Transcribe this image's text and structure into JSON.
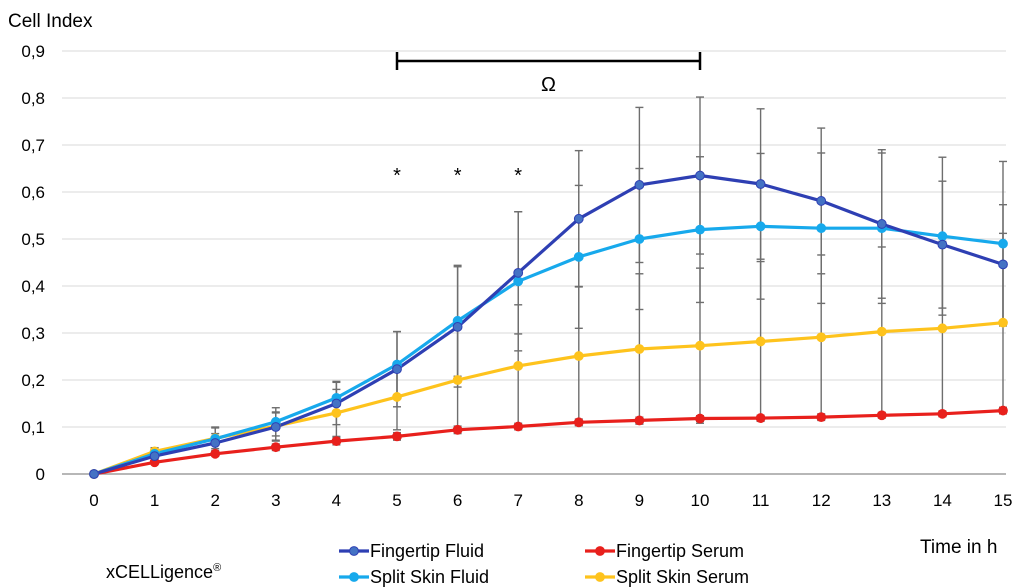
{
  "chart_data": {
    "type": "line",
    "ylabel": "Cell Index",
    "xlabel": "Time in h",
    "ylim": [
      0,
      0.9
    ],
    "yticks": [
      "0",
      "0,1",
      "0,2",
      "0,3",
      "0,4",
      "0,5",
      "0,6",
      "0,7",
      "0,8",
      "0,9"
    ],
    "x": [
      0,
      1,
      2,
      3,
      4,
      5,
      6,
      7,
      8,
      9,
      10,
      11,
      12,
      13,
      14,
      15
    ],
    "xticks": [
      "0",
      "1",
      "2",
      "3",
      "4",
      "5",
      "6",
      "7",
      "8",
      "9",
      "10",
      "11",
      "12",
      "13",
      "14",
      "15"
    ],
    "grid": "horizontal",
    "legend_position": "bottom",
    "series": [
      {
        "name": "Fingertip Fluid",
        "color": "#2e3fb3",
        "marker_color": "#4472c4",
        "values": [
          0,
          0.038,
          0.066,
          0.1,
          0.15,
          0.223,
          0.313,
          0.428,
          0.543,
          0.615,
          0.635,
          0.617,
          0.581,
          0.532,
          0.488,
          0.446
        ],
        "error": [
          0,
          0.012,
          0.02,
          0.03,
          0.045,
          0.08,
          0.128,
          0.13,
          0.145,
          0.165,
          0.167,
          0.16,
          0.155,
          0.158,
          0.135,
          0.127
        ]
      },
      {
        "name": "Fingertip Serum",
        "color": "#e8201c",
        "marker_color": "#e8201c",
        "values": [
          0,
          0.025,
          0.043,
          0.057,
          0.07,
          0.08,
          0.094,
          0.101,
          0.11,
          0.114,
          0.118,
          0.119,
          0.121,
          0.125,
          0.128,
          0.135
        ],
        "error": [
          0,
          0.003,
          0.005,
          0.007,
          0.008,
          0.008,
          0.008,
          0.007,
          0.007,
          0.007,
          0.006,
          0.006,
          0.007,
          0.006,
          0.006,
          0.007
        ]
      },
      {
        "name": "Split Skin Fluid",
        "color": "#17a9ec",
        "marker_color": "#17a9ec",
        "values": [
          0,
          0.043,
          0.075,
          0.111,
          0.162,
          0.233,
          0.326,
          0.41,
          0.462,
          0.5,
          0.52,
          0.527,
          0.523,
          0.523,
          0.506,
          0.49
        ],
        "error": [
          0,
          0.012,
          0.025,
          0.03,
          0.035,
          0.07,
          0.118,
          0.148,
          0.152,
          0.15,
          0.155,
          0.155,
          0.16,
          0.16,
          0.168,
          0.175
        ]
      },
      {
        "name": "Split Skin Serum",
        "color": "#fec31d",
        "marker_color": "#fec31d",
        "values": [
          0,
          0.048,
          0.076,
          0.102,
          0.13,
          0.164,
          0.2,
          0.23,
          0.251,
          0.266,
          0.273,
          0.282,
          0.291,
          0.303,
          0.31,
          0.322
        ],
        "error": [
          0,
          0.008,
          0.022,
          0.03,
          0.05,
          0.07,
          0.11,
          0.13,
          0.148,
          0.16,
          0.165,
          0.17,
          0.175,
          0.18,
          0.185,
          0.19
        ]
      }
    ],
    "annotations": {
      "stars": [
        {
          "x": 5,
          "label": "*"
        },
        {
          "x": 6,
          "label": "*"
        },
        {
          "x": 7,
          "label": "*"
        }
      ],
      "bracket": {
        "x_from": 5,
        "x_to": 10,
        "label": "Ω"
      }
    }
  },
  "brand": {
    "name": "xCELLigence",
    "mark": "®"
  }
}
